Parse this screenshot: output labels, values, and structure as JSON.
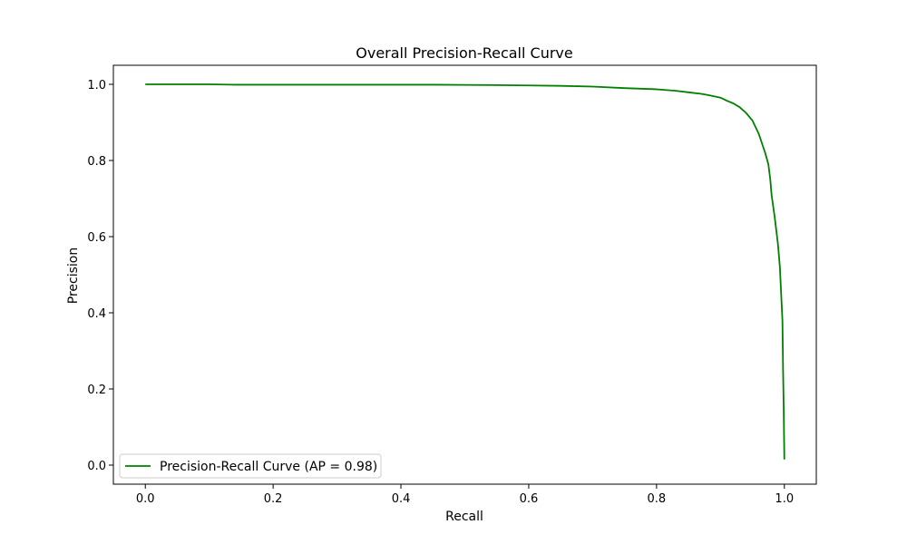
{
  "chart_data": {
    "type": "line",
    "title": "Overall Precision-Recall Curve",
    "xlabel": "Recall",
    "ylabel": "Precision",
    "xlim": [
      -0.05,
      1.05
    ],
    "ylim": [
      -0.05,
      1.05
    ],
    "xticks": [
      0.0,
      0.2,
      0.4,
      0.6,
      0.8,
      1.0
    ],
    "yticks": [
      0.0,
      0.2,
      0.4,
      0.6,
      0.8,
      1.0
    ],
    "grid": false,
    "legend_position": "lower-left",
    "series": [
      {
        "name": "Precision-Recall Curve (AP = 0.98)",
        "color": "#008000",
        "x": [
          0.0,
          0.1,
          0.14,
          0.3,
          0.45,
          0.55,
          0.6,
          0.65,
          0.7,
          0.75,
          0.8,
          0.83,
          0.85,
          0.87,
          0.88,
          0.9,
          0.91,
          0.92,
          0.93,
          0.94,
          0.95,
          0.96,
          0.965,
          0.97,
          0.975,
          0.978,
          0.98,
          0.985,
          0.99,
          0.993,
          0.995,
          0.997,
          0.998,
          0.999,
          1.0
        ],
        "y": [
          1.0,
          1.0,
          0.999,
          0.999,
          0.999,
          0.998,
          0.997,
          0.996,
          0.994,
          0.99,
          0.987,
          0.983,
          0.979,
          0.975,
          0.972,
          0.965,
          0.957,
          0.95,
          0.94,
          0.925,
          0.905,
          0.87,
          0.845,
          0.82,
          0.79,
          0.75,
          0.71,
          0.65,
          0.58,
          0.52,
          0.45,
          0.38,
          0.25,
          0.15,
          0.015
        ]
      }
    ]
  }
}
